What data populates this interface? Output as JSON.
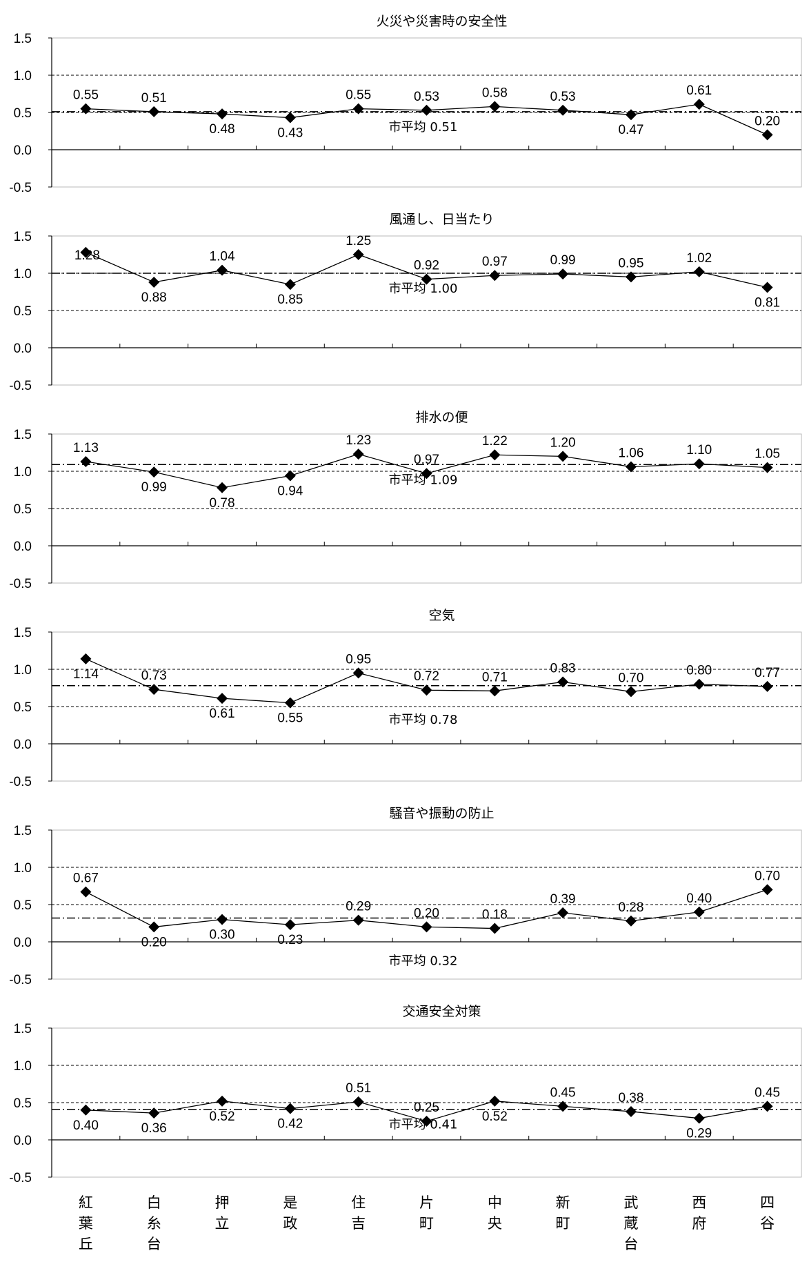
{
  "chart_data": {
    "type": "line",
    "categories": [
      "紅葉丘",
      "白糸台",
      "押立",
      "是政",
      "住吉",
      "片町",
      "中央",
      "新町",
      "武蔵台",
      "西府",
      "四谷"
    ],
    "ylim": [
      -0.5,
      1.5
    ],
    "yticks": [
      "1.5",
      "1.0",
      "0.5",
      "0.0",
      "-0.5"
    ],
    "avg_label": "市平均",
    "panels": [
      {
        "title": "火災や災害時の安全性",
        "values": [
          0.55,
          0.51,
          0.48,
          0.43,
          0.55,
          0.53,
          0.58,
          0.53,
          0.47,
          0.61,
          0.2
        ],
        "labels": [
          "0.55",
          "0.51",
          "0.48",
          "0.43",
          "0.55",
          "0.53",
          "0.58",
          "0.53",
          "0.47",
          "0.61",
          "0.20"
        ],
        "average": 0.51,
        "average_label": "0.51"
      },
      {
        "title": "風通し、日当たり",
        "values": [
          1.28,
          0.88,
          1.04,
          0.85,
          1.25,
          0.92,
          0.97,
          0.99,
          0.95,
          1.02,
          0.81
        ],
        "labels": [
          "1.28",
          "0.88",
          "1.04",
          "0.85",
          "1.25",
          "0.92",
          "0.97",
          "0.99",
          "0.95",
          "1.02",
          "0.81"
        ],
        "average": 1.0,
        "average_label": "1.00"
      },
      {
        "title": "排水の便",
        "values": [
          1.13,
          0.99,
          0.78,
          0.94,
          1.23,
          0.97,
          1.22,
          1.2,
          1.06,
          1.1,
          1.05
        ],
        "labels": [
          "1.13",
          "0.99",
          "0.78",
          "0.94",
          "1.23",
          "0.97",
          "1.22",
          "1.20",
          "1.06",
          "1.10",
          "1.05"
        ],
        "average": 1.09,
        "average_label": "1.09"
      },
      {
        "title": "空気",
        "values": [
          1.14,
          0.73,
          0.61,
          0.55,
          0.95,
          0.72,
          0.71,
          0.83,
          0.7,
          0.8,
          0.77
        ],
        "labels": [
          "1.14",
          "0.73",
          "0.61",
          "0.55",
          "0.95",
          "0.72",
          "0.71",
          "0.83",
          "0.70",
          "0.80",
          "0.77"
        ],
        "average": 0.78,
        "average_label": "0.78"
      },
      {
        "title": "騒音や振動の防止",
        "values": [
          0.67,
          0.2,
          0.3,
          0.23,
          0.29,
          0.2,
          0.18,
          0.39,
          0.28,
          0.4,
          0.7
        ],
        "labels": [
          "0.67",
          "0.20",
          "0.30",
          "0.23",
          "0.29",
          "0.20",
          "0.18",
          "0.39",
          "0.28",
          "0.40",
          "0.70"
        ],
        "average": 0.32,
        "average_label": "0.32"
      },
      {
        "title": "交通安全対策",
        "values": [
          0.4,
          0.36,
          0.52,
          0.42,
          0.51,
          0.25,
          0.52,
          0.45,
          0.38,
          0.29,
          0.45
        ],
        "labels": [
          "0.40",
          "0.36",
          "0.52",
          "0.42",
          "0.51",
          "0.25",
          "0.52",
          "0.45",
          "0.38",
          "0.29",
          "0.45"
        ],
        "average": 0.41,
        "average_label": "0.41"
      }
    ]
  }
}
